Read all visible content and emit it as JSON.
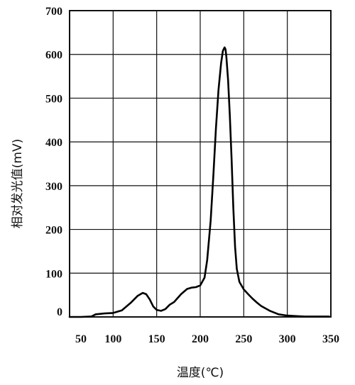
{
  "chart_data": {
    "type": "line",
    "xlabel": "温度(℃)",
    "ylabel": "相对发光值(mV)",
    "xlim": [
      50,
      350
    ],
    "ylim": [
      0,
      700
    ],
    "x_ticks": [
      "50",
      "100",
      "150",
      "200",
      "250",
      "300",
      "350"
    ],
    "y_ticks": [
      "0",
      "100",
      "200",
      "300",
      "400",
      "500",
      "600",
      "700"
    ],
    "grid": true,
    "series": [
      {
        "x": [
          50,
          63,
          75,
          80,
          90,
          100,
          110,
          120,
          128,
          134,
          138,
          142,
          146,
          150,
          155,
          160,
          165,
          170,
          178,
          185,
          190,
          195,
          200,
          205,
          208,
          212,
          215,
          218,
          221,
          224,
          226,
          228,
          229,
          230,
          232,
          234,
          236,
          238,
          240,
          242,
          245,
          250,
          255,
          260,
          265,
          270,
          280,
          290,
          300,
          310,
          320,
          330,
          340,
          348
        ],
        "y": [
          0,
          0,
          1,
          6,
          8,
          9,
          15,
          32,
          48,
          55,
          52,
          40,
          24,
          16,
          14,
          18,
          28,
          34,
          52,
          64,
          67,
          68,
          72,
          90,
          130,
          220,
          320,
          430,
          520,
          580,
          608,
          616,
          612,
          595,
          540,
          460,
          360,
          250,
          160,
          110,
          80,
          63,
          52,
          42,
          33,
          25,
          14,
          6,
          3,
          2,
          1,
          1,
          1,
          1
        ]
      }
    ]
  }
}
